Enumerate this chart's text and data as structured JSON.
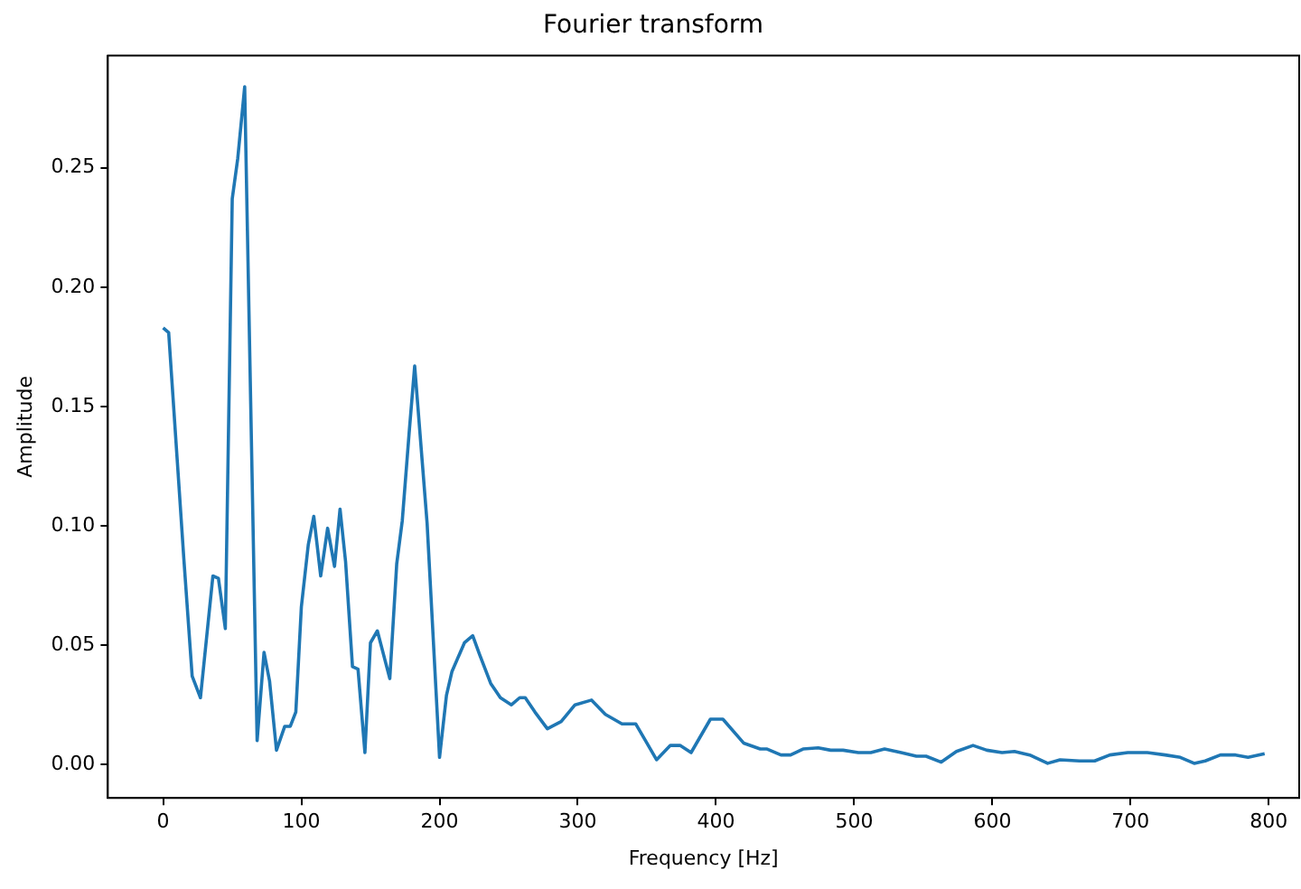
{
  "chart_data": {
    "type": "line",
    "title": "Fourier transform",
    "xlabel": "Frequency [Hz]",
    "ylabel": "Amplitude",
    "x": [
      0,
      4,
      15,
      21,
      27,
      36,
      40,
      45,
      50,
      54,
      59,
      68,
      73,
      77,
      82,
      88,
      92,
      96,
      100,
      105,
      109,
      114,
      119,
      124,
      128,
      132,
      137,
      141,
      146,
      150,
      155,
      164,
      169,
      173,
      178,
      182,
      191,
      200,
      205,
      209,
      218,
      224,
      229,
      237,
      244,
      252,
      258,
      262,
      269,
      278,
      288,
      298,
      310,
      320,
      332,
      342,
      348,
      357,
      367,
      374,
      382,
      396,
      405,
      420,
      432,
      437,
      447,
      454,
      463,
      474,
      483,
      492,
      503,
      512,
      522,
      534,
      545,
      552,
      563,
      574,
      586,
      596,
      607,
      616,
      627,
      640,
      649,
      663,
      674,
      685,
      698,
      712,
      725,
      736,
      746,
      754,
      765,
      776,
      785,
      797
    ],
    "series": [
      {
        "color": "#1f77b4",
        "values": [
          0.183,
          0.181,
          0.086,
          0.037,
          0.028,
          0.079,
          0.078,
          0.057,
          0.237,
          0.254,
          0.284,
          0.01,
          0.047,
          0.035,
          0.006,
          0.016,
          0.016,
          0.022,
          0.066,
          0.092,
          0.104,
          0.079,
          0.099,
          0.083,
          0.107,
          0.085,
          0.041,
          0.04,
          0.005,
          0.051,
          0.056,
          0.036,
          0.084,
          0.102,
          0.139,
          0.167,
          0.101,
          0.003,
          0.029,
          0.039,
          0.051,
          0.054,
          0.046,
          0.034,
          0.028,
          0.025,
          0.028,
          0.028,
          0.022,
          0.015,
          0.018,
          0.025,
          0.027,
          0.021,
          0.017,
          0.017,
          0.011,
          0.002,
          0.008,
          0.008,
          0.005,
          0.019,
          0.019,
          0.009,
          0.0065,
          0.0065,
          0.004,
          0.004,
          0.0065,
          0.007,
          0.006,
          0.006,
          0.005,
          0.005,
          0.0065,
          0.005,
          0.0035,
          0.0035,
          0.001,
          0.0055,
          0.008,
          0.006,
          0.005,
          0.0055,
          0.004,
          0.0005,
          0.002,
          0.0015,
          0.0015,
          0.004,
          0.005,
          0.005,
          0.004,
          0.003,
          0.0005,
          0.0015,
          0.004,
          0.004,
          0.003,
          0.0045
        ]
      }
    ],
    "xlim": [
      -40,
      822
    ],
    "ylim": [
      -0.014,
      0.297
    ],
    "xticks": [
      0,
      100,
      200,
      300,
      400,
      500,
      600,
      700,
      800
    ],
    "yticks": [
      {
        "value": 0,
        "label": "0.00"
      },
      {
        "value": 0.05,
        "label": "0.05"
      },
      {
        "value": 0.1,
        "label": "0.10"
      },
      {
        "value": 0.15,
        "label": "0.15"
      },
      {
        "value": 0.2,
        "label": "0.20"
      },
      {
        "value": 0.25,
        "label": "0.25"
      }
    ],
    "grid": false,
    "legend": false,
    "marker": "none",
    "line_style": "solid"
  }
}
